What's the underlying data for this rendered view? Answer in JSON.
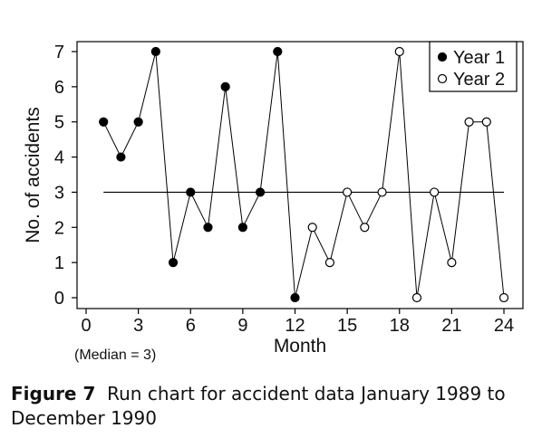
{
  "chart_data": {
    "type": "line",
    "xlabel": "Month",
    "ylabel": "No. of accidents",
    "xlim": [
      0,
      24
    ],
    "ylim": [
      0,
      7
    ],
    "x_ticks": [
      0,
      3,
      6,
      9,
      12,
      15,
      18,
      21,
      24
    ],
    "y_ticks": [
      0,
      1,
      2,
      3,
      4,
      5,
      6,
      7
    ],
    "grid": false,
    "legend_position": "top-right",
    "series": [
      {
        "name": "Year 1",
        "marker": "filled-circle",
        "x": [
          1,
          2,
          3,
          4,
          5,
          6,
          7,
          8,
          9,
          10,
          11,
          12
        ],
        "values": [
          5,
          4,
          5,
          7,
          1,
          3,
          2,
          6,
          2,
          3,
          7,
          0
        ]
      },
      {
        "name": "Year 2",
        "marker": "open-circle",
        "x": [
          13,
          14,
          15,
          16,
          17,
          18,
          19,
          20,
          21,
          22,
          23,
          24
        ],
        "values": [
          2,
          1,
          3,
          2,
          3,
          7,
          0,
          3,
          1,
          5,
          5,
          0
        ]
      }
    ],
    "median": {
      "value": 3,
      "x_range": [
        1,
        24
      ],
      "label": "(Median = 3)"
    }
  },
  "caption": {
    "figure_label": "Figure 7",
    "text": "Run chart for accident data January 1989 to December 1990"
  },
  "colors": {
    "line": "#000000",
    "fill": "#000000",
    "open_fill": "#ffffff"
  }
}
